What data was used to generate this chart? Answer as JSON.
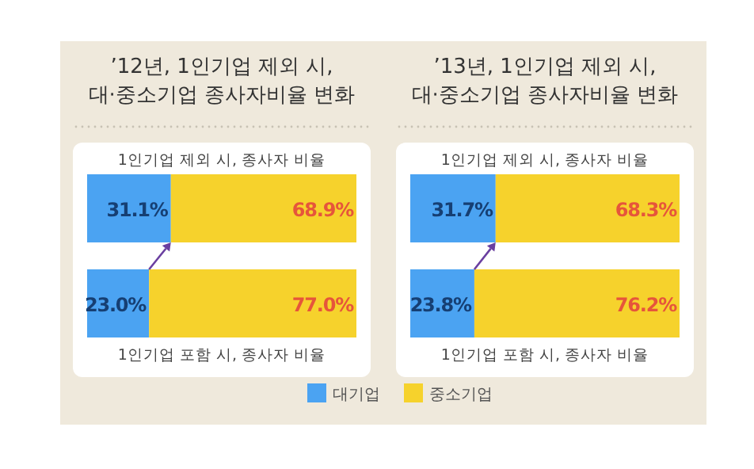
{
  "chart_data": [
    {
      "type": "bar",
      "orientation": "horizontal",
      "stacked": true,
      "legend": "bottom",
      "title": "’12년, 1인기업 제외 시,\n대·중소기업 종사자비율 변화",
      "categories": [
        "1인기업 제외 시, 종사자 비율",
        "1인기업 포함 시, 종사자 비율"
      ],
      "series": [
        {
          "name": "대기업",
          "color": "#4ba3f2",
          "values": [
            31.1,
            23.0
          ],
          "value_labels": [
            "31.1%",
            "23.0%"
          ]
        },
        {
          "name": "중소기업",
          "color": "#f6d22c",
          "values": [
            68.9,
            77.0
          ],
          "value_labels": [
            "68.9%",
            "77.0%"
          ]
        }
      ]
    },
    {
      "type": "bar",
      "orientation": "horizontal",
      "stacked": true,
      "title": "’13년, 1인기업 제외 시,\n대·중소기업 종사자비율 변화",
      "categories": [
        "1인기업 제외 시, 종사자 비율",
        "1인기업 포함 시, 종사자 비율"
      ],
      "series": [
        {
          "color": "#4ba3f2",
          "values": [
            31.7,
            23.8
          ],
          "value_labels": [
            "31.7%",
            "23.8%"
          ]
        },
        {
          "color": "#f6d22c",
          "values": [
            68.3,
            76.2
          ],
          "value_labels": [
            "68.3%",
            "76.2%"
          ]
        }
      ]
    }
  ]
}
